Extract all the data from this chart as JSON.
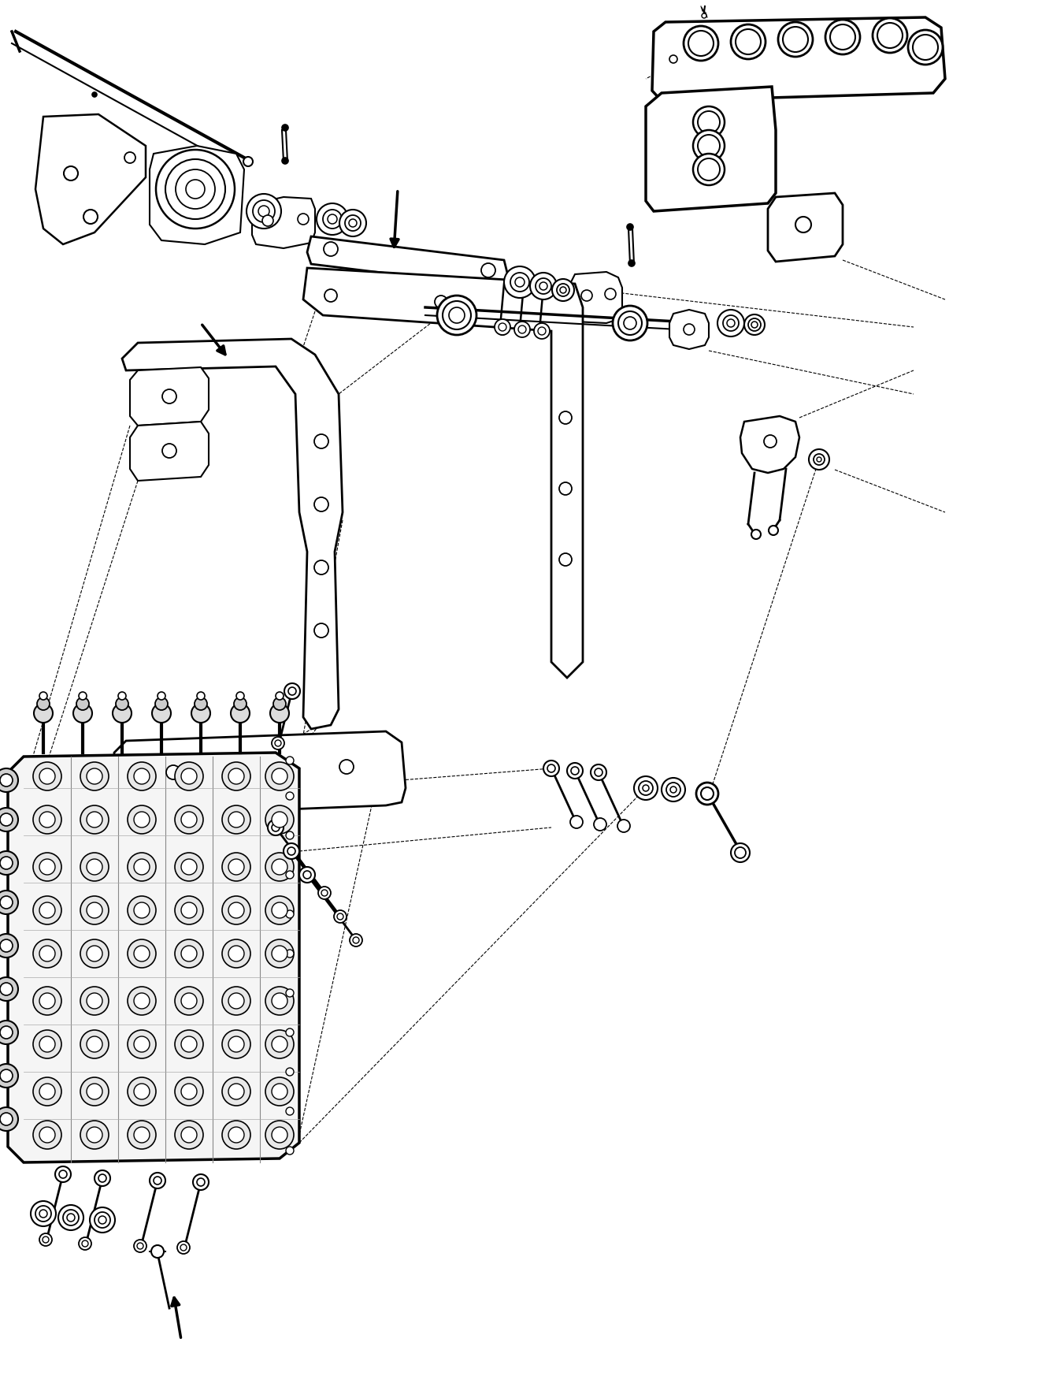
{
  "background_color": "#ffffff",
  "line_color": "#000000",
  "figure_width": 13.51,
  "figure_height": 17.46,
  "dpi": 100
}
